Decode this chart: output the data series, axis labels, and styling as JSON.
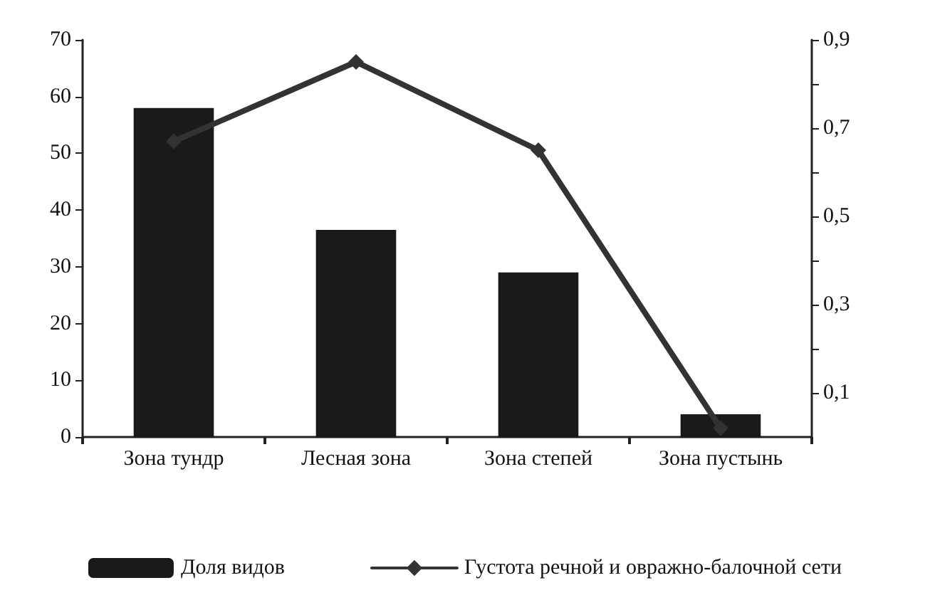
{
  "chart_data": {
    "type": "bar",
    "categories": [
      "Зона тундр",
      "Лесная зона",
      "Зона степей",
      "Зона пустынь"
    ],
    "series": [
      {
        "name": "Доля видов",
        "color": "#1a1a1a",
        "values": [
          58,
          36.5,
          29,
          4
        ]
      },
      {
        "name": "Густота речной и овражно-балочной сети",
        "type": "line",
        "axis": "y2",
        "color": "#333333",
        "marker": "diamond",
        "values": [
          0.67,
          0.85,
          0.65,
          0.02
        ]
      }
    ],
    "ylim": [
      0,
      70
    ],
    "yticks": [
      0,
      10,
      20,
      30,
      40,
      50,
      60,
      70
    ],
    "y2lim": [
      0,
      0.9
    ],
    "y2ticks": [
      {
        "value": 0.1,
        "label": "0,1"
      },
      {
        "value": 0.2,
        "label": null
      },
      {
        "value": 0.3,
        "label": "0,3"
      },
      {
        "value": 0.4,
        "label": null
      },
      {
        "value": 0.5,
        "label": "0,5"
      },
      {
        "value": 0.6,
        "label": null
      },
      {
        "value": 0.7,
        "label": "0,7"
      },
      {
        "value": 0.8,
        "label": null
      },
      {
        "value": 0.9,
        "label": "0,9"
      }
    ],
    "grid": false,
    "legend": "bottom"
  }
}
